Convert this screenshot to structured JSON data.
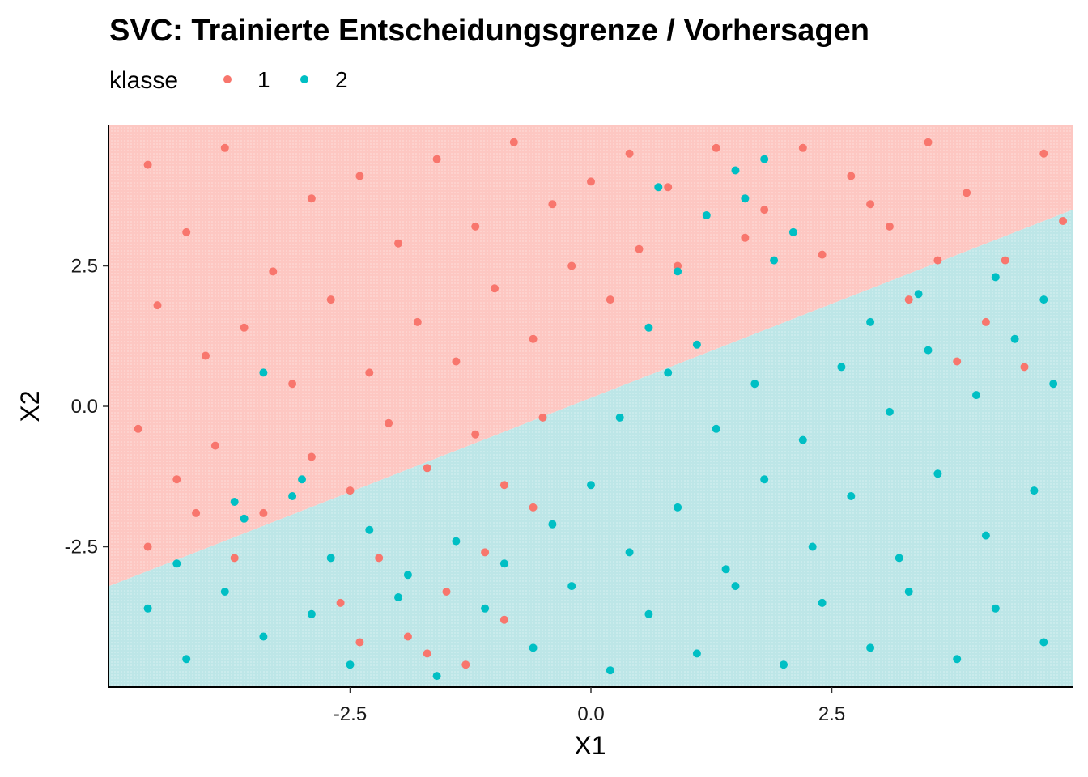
{
  "chart_data": {
    "type": "scatter",
    "title": "SVC: Trainierte Entscheidungsgrenze / Vorhersagen",
    "xlabel": "X1",
    "ylabel": "X2",
    "xlim": [
      -5,
      5
    ],
    "ylim": [
      -5,
      5
    ],
    "x_ticks": [
      -2.5,
      0.0,
      2.5
    ],
    "y_ticks": [
      -2.5,
      0.0,
      2.5
    ],
    "x_tick_labels": [
      "-2.5",
      "0.0",
      "2.5"
    ],
    "y_tick_labels": [
      "-2.5",
      "0.0",
      "2.5"
    ],
    "grid": false,
    "legend_position": "top-left",
    "legend": {
      "title": "klasse",
      "entries": [
        {
          "label": "1",
          "color": "#F8766D"
        },
        {
          "label": "2",
          "color": "#00BFC4"
        }
      ]
    },
    "decision_boundary": {
      "line_points": [
        [
          -5,
          -3.2
        ],
        [
          5,
          3.5
        ]
      ],
      "region_above": "1",
      "region_below": "2",
      "region_colors": {
        "1": "#FDC7C2",
        "2": "#BDE6E7"
      }
    },
    "point_distribution": {
      "class_1_region": "mostly above the decision boundary, a few below it around X1 in [-3, 0] and X2 in [-4.5, -1]",
      "class_2_region": "mostly below the decision boundary, plus a cluster above it around X1 in [0.5, 2.5] and X2 in [0.5, 4.5]"
    },
    "series": [
      {
        "name": "1",
        "color": "#F8766D",
        "points": [
          [
            -4.6,
            4.3
          ],
          [
            -4.2,
            3.1
          ],
          [
            -3.8,
            4.6
          ],
          [
            -3.3,
            2.4
          ],
          [
            -2.9,
            3.7
          ],
          [
            -2.4,
            4.1
          ],
          [
            -2.0,
            2.9
          ],
          [
            -1.6,
            4.4
          ],
          [
            -1.2,
            3.2
          ],
          [
            -0.8,
            4.7
          ],
          [
            -0.4,
            3.6
          ],
          [
            0.0,
            4.0
          ],
          [
            0.4,
            4.5
          ],
          [
            0.8,
            3.9
          ],
          [
            1.3,
            4.6
          ],
          [
            1.8,
            3.5
          ],
          [
            2.2,
            4.6
          ],
          [
            2.7,
            4.1
          ],
          [
            3.1,
            3.2
          ],
          [
            3.5,
            4.7
          ],
          [
            3.9,
            3.8
          ],
          [
            4.3,
            2.6
          ],
          [
            4.7,
            4.5
          ],
          [
            -4.5,
            1.8
          ],
          [
            -4.0,
            0.9
          ],
          [
            -3.6,
            1.4
          ],
          [
            -3.1,
            0.4
          ],
          [
            -2.7,
            1.9
          ],
          [
            -2.3,
            0.6
          ],
          [
            -1.8,
            1.5
          ],
          [
            -1.4,
            0.8
          ],
          [
            -1.0,
            2.1
          ],
          [
            -0.6,
            1.2
          ],
          [
            -0.2,
            2.5
          ],
          [
            0.2,
            1.9
          ],
          [
            0.5,
            2.8
          ],
          [
            -4.7,
            -0.4
          ],
          [
            -4.3,
            -1.3
          ],
          [
            -3.9,
            -0.7
          ],
          [
            -3.4,
            -1.9
          ],
          [
            -2.9,
            -0.9
          ],
          [
            -2.5,
            -1.5
          ],
          [
            -2.1,
            -0.3
          ],
          [
            -1.7,
            -1.1
          ],
          [
            -1.2,
            -0.5
          ],
          [
            -0.9,
            -1.4
          ],
          [
            -0.5,
            -0.2
          ],
          [
            -4.6,
            -2.5
          ],
          [
            -4.1,
            -1.9
          ],
          [
            -3.7,
            -2.7
          ],
          [
            -2.6,
            -3.5
          ],
          [
            -2.2,
            -2.7
          ],
          [
            -1.9,
            -4.1
          ],
          [
            -1.5,
            -3.3
          ],
          [
            -1.1,
            -2.6
          ],
          [
            -0.9,
            -3.8
          ],
          [
            -1.3,
            -4.6
          ],
          [
            -1.7,
            -4.4
          ],
          [
            -2.4,
            -4.2
          ],
          [
            -0.6,
            -1.8
          ],
          [
            1.6,
            3.0
          ],
          [
            2.4,
            2.7
          ],
          [
            3.3,
            1.9
          ],
          [
            3.8,
            0.8
          ],
          [
            4.1,
            1.5
          ],
          [
            4.5,
            0.7
          ],
          [
            3.6,
            2.6
          ],
          [
            2.9,
            3.6
          ],
          [
            4.9,
            3.3
          ],
          [
            0.9,
            2.5
          ]
        ]
      },
      {
        "name": "2",
        "color": "#00BFC4",
        "points": [
          [
            -4.6,
            -3.6
          ],
          [
            -4.2,
            -4.5
          ],
          [
            -3.8,
            -3.3
          ],
          [
            -3.4,
            -4.1
          ],
          [
            -2.9,
            -3.7
          ],
          [
            -2.5,
            -4.6
          ],
          [
            -2.0,
            -3.4
          ],
          [
            -1.6,
            -4.8
          ],
          [
            -1.1,
            -3.6
          ],
          [
            -0.6,
            -4.3
          ],
          [
            -0.2,
            -3.2
          ],
          [
            0.2,
            -4.7
          ],
          [
            0.6,
            -3.7
          ],
          [
            1.1,
            -4.4
          ],
          [
            1.5,
            -3.2
          ],
          [
            2.0,
            -4.6
          ],
          [
            2.4,
            -3.5
          ],
          [
            2.9,
            -4.3
          ],
          [
            3.3,
            -3.3
          ],
          [
            3.8,
            -4.5
          ],
          [
            4.2,
            -3.6
          ],
          [
            4.7,
            -4.2
          ],
          [
            -3.6,
            -2.0
          ],
          [
            -3.1,
            -1.6
          ],
          [
            -2.7,
            -2.7
          ],
          [
            -2.3,
            -2.2
          ],
          [
            -1.9,
            -3.0
          ],
          [
            -1.4,
            -2.4
          ],
          [
            -0.9,
            -2.8
          ],
          [
            -0.4,
            -2.1
          ],
          [
            0.0,
            -1.4
          ],
          [
            0.4,
            -2.6
          ],
          [
            0.9,
            -1.8
          ],
          [
            1.4,
            -2.9
          ],
          [
            1.8,
            -1.3
          ],
          [
            2.3,
            -2.5
          ],
          [
            2.7,
            -1.6
          ],
          [
            3.2,
            -2.7
          ],
          [
            3.6,
            -1.2
          ],
          [
            4.1,
            -2.3
          ],
          [
            4.6,
            -1.5
          ],
          [
            0.3,
            -0.2
          ],
          [
            0.8,
            0.6
          ],
          [
            1.3,
            -0.4
          ],
          [
            1.7,
            0.4
          ],
          [
            2.2,
            -0.6
          ],
          [
            2.6,
            0.7
          ],
          [
            3.1,
            -0.1
          ],
          [
            3.5,
            1.0
          ],
          [
            4.0,
            0.2
          ],
          [
            4.4,
            1.2
          ],
          [
            4.8,
            0.4
          ],
          [
            2.9,
            1.5
          ],
          [
            3.4,
            2.0
          ],
          [
            4.2,
            2.3
          ],
          [
            4.7,
            1.9
          ],
          [
            0.6,
            1.4
          ],
          [
            0.9,
            2.4
          ],
          [
            1.2,
            3.4
          ],
          [
            1.5,
            4.2
          ],
          [
            1.9,
            2.6
          ],
          [
            1.1,
            1.1
          ],
          [
            1.6,
            3.7
          ],
          [
            2.1,
            3.1
          ],
          [
            0.7,
            3.9
          ],
          [
            1.8,
            4.4
          ],
          [
            -3.4,
            0.6
          ],
          [
            -3.7,
            -1.7
          ],
          [
            -3.0,
            -1.3
          ],
          [
            -4.3,
            -2.8
          ]
        ]
      }
    ]
  },
  "colors": {
    "class_1": "#F8766D",
    "class_2": "#00BFC4",
    "region_1": "#FDC7C2",
    "region_2": "#BDE6E7",
    "axis": "#000000"
  }
}
